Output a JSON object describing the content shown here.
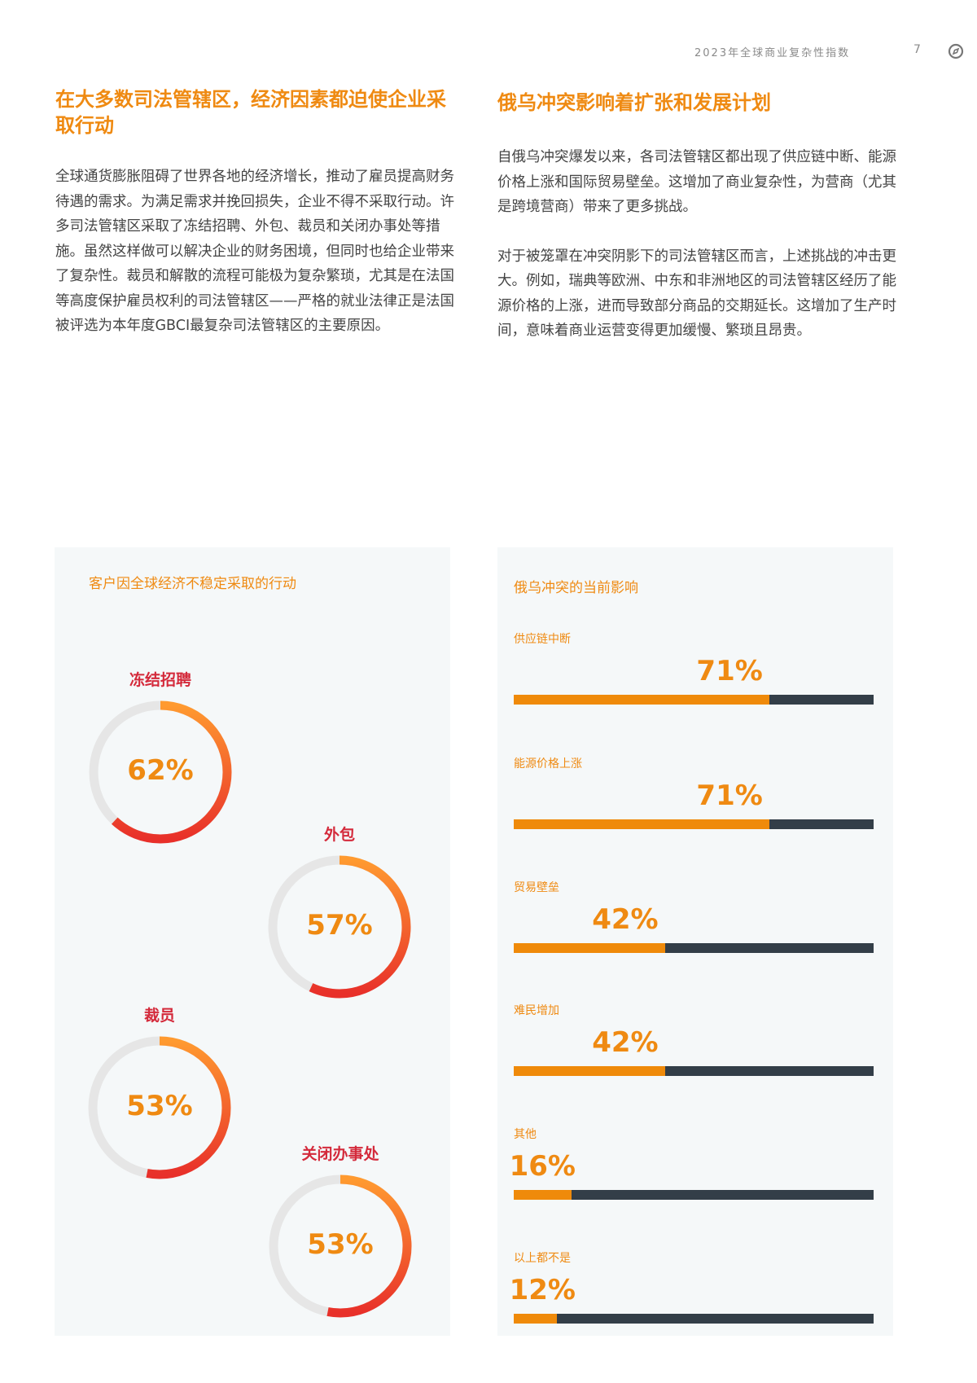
{
  "header": {
    "title": "2023年全球商业复杂性指数",
    "page_number": "7",
    "icon": "compass-icon"
  },
  "left_column": {
    "heading": "在大多数司法管辖区，经济因素都迫使企业采取行动",
    "paragraphs": [
      "全球通货膨胀阻碍了世界各地的经济增长，推动了雇员提高财务待遇的需求。为满足需求并挽回损失，企业不得不采取行动。许多司法管辖区采取了冻结招聘、外包、裁员和关闭办事处等措施。虽然这样做可以解决企业的财务困境，但同时也给企业带来了复杂性。裁员和解散的流程可能极为复杂繁琐，尤其是在法国等高度保护雇员权利的司法管辖区——严格的就业法律正是法国被评选为本年度GBCI最复杂司法管辖区的主要原因。"
    ]
  },
  "right_column": {
    "heading": "俄乌冲突影响着扩张和发展计划",
    "paragraphs": [
      "自俄乌冲突爆发以来，各司法管辖区都出现了供应链中断、能源价格上涨和国际贸易壁垒。这增加了商业复杂性，为营商（尤其是跨境营商）带来了更多挑战。",
      "对于被笼罩在冲突阴影下的司法管辖区而言，上述挑战的冲击更大。例如，瑞典等欧洲、中东和非洲地区的司法管辖区经历了能源价格的上涨，进而导致部分商品的交期延长。这增加了生产时间，意味着商业运营变得更加缓慢、繁琐且昂贵。"
    ]
  },
  "colors": {
    "accent_orange": "#ef8a12",
    "label_red": "#d42a3b",
    "bar_track": "#333e48",
    "donut_track": "#e6e6e6",
    "panel_bg": "#f5f8f9"
  },
  "chart_data": [
    {
      "type": "pie",
      "subtype": "donut",
      "title": "客户因全球经济不稳定采取的行动",
      "categories": [
        "冻结招聘",
        "外包",
        "裁员",
        "关闭办事处"
      ],
      "values": [
        62,
        57,
        53,
        53
      ],
      "labels": [
        "62%",
        "57%",
        "53%",
        "53%"
      ],
      "unit": "%"
    },
    {
      "type": "bar",
      "orientation": "horizontal",
      "title": "俄乌冲突的当前影响",
      "categories": [
        "供应链中断",
        "能源价格上涨",
        "贸易壁垒",
        "难民增加",
        "其他",
        "以上都不是"
      ],
      "values": [
        71,
        71,
        42,
        42,
        16,
        12
      ],
      "labels": [
        "71%",
        "71%",
        "42%",
        "42%",
        "16%",
        "12%"
      ],
      "xlim": [
        0,
        100
      ],
      "unit": "%"
    }
  ]
}
